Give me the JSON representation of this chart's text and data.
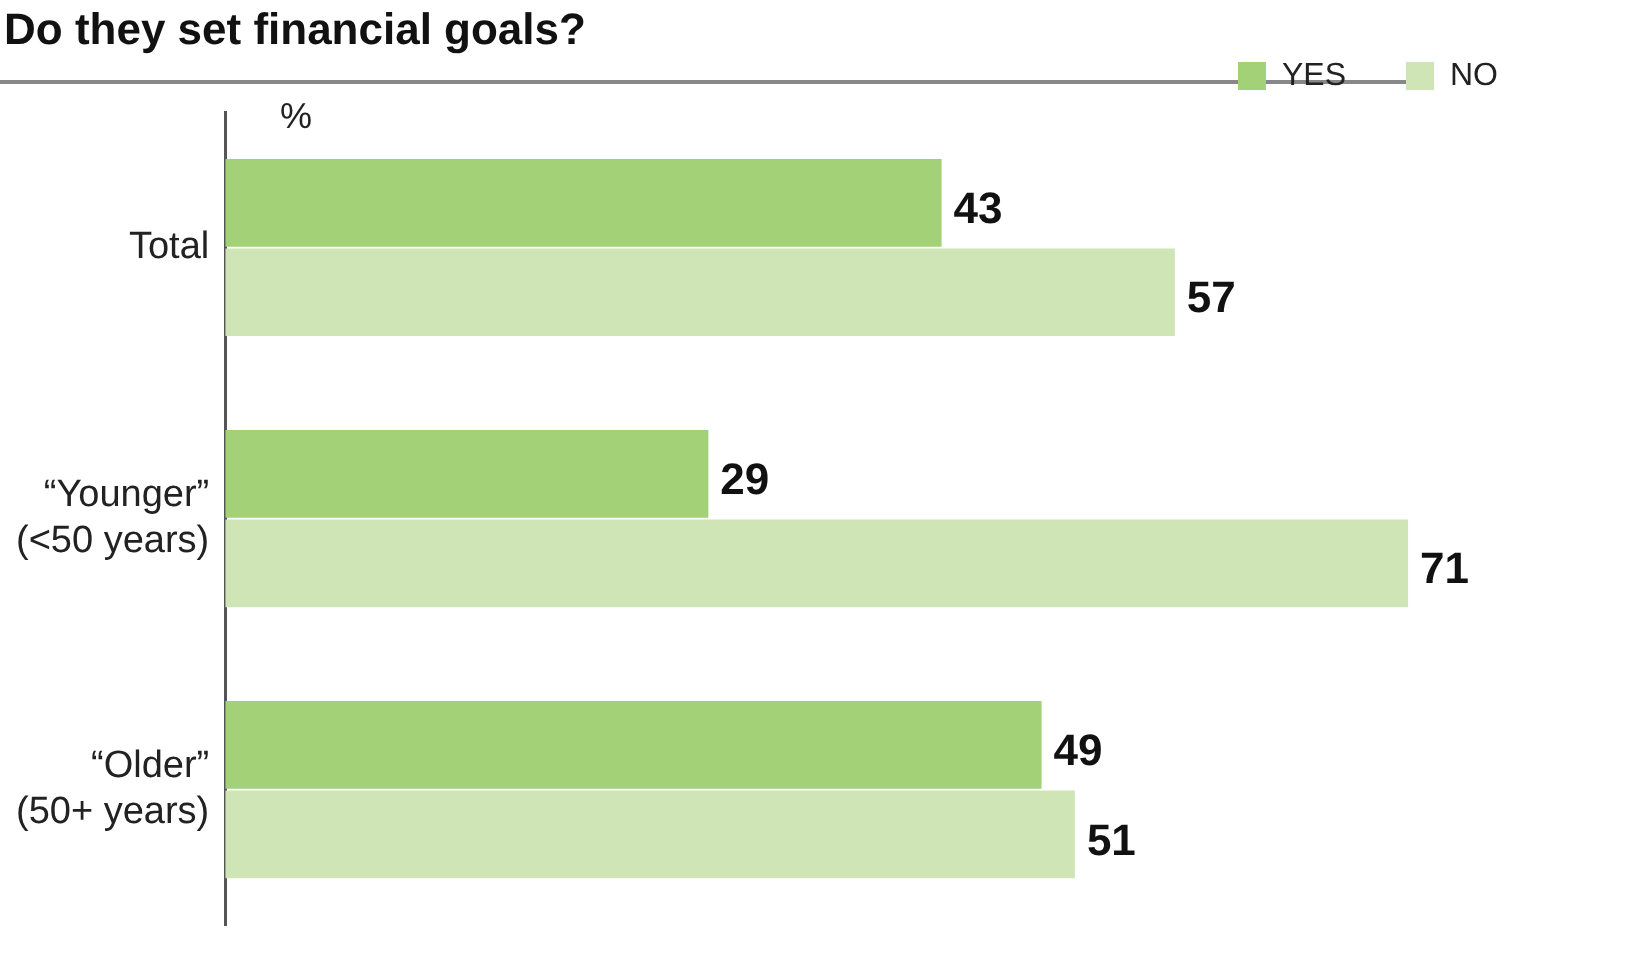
{
  "chart_data": {
    "type": "bar",
    "orientation": "horizontal",
    "title": "Do they set financial goals?",
    "categories": [
      "Total",
      "“Younger”\n(<50 years)",
      "“Older”\n(50+ years)"
    ],
    "series": [
      {
        "name": "YES",
        "color": "#a3d177",
        "values": [
          43,
          29,
          49
        ]
      },
      {
        "name": "NO",
        "color": "#cfe5b6",
        "values": [
          57,
          71,
          51
        ]
      }
    ],
    "data_labels": true,
    "legend": "top right",
    "grid": false,
    "annotations": [
      "%"
    ]
  }
}
